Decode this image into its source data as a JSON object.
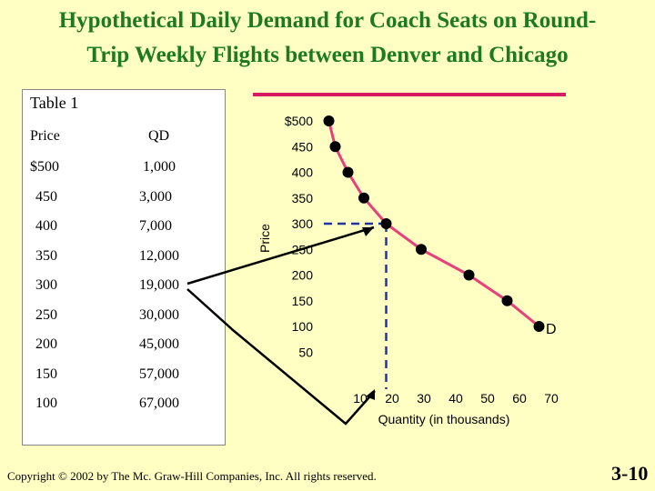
{
  "title_line1": "Hypothetical Daily Demand for Coach Seats on Round-",
  "title_line2": "Trip Weekly Flights between Denver and Chicago",
  "table": {
    "title": "Table 1",
    "col_price": "Price",
    "col_qd": "QD",
    "rows": [
      {
        "price": "$500",
        "qd": "1,000"
      },
      {
        "price": "450",
        "qd": "3,000"
      },
      {
        "price": "400",
        "qd": "7,000"
      },
      {
        "price": "350",
        "qd": "12,000"
      },
      {
        "price": "300",
        "qd": "19,000"
      },
      {
        "price": "250",
        "qd": "30,000"
      },
      {
        "price": "200",
        "qd": "45,000"
      },
      {
        "price": "150",
        "qd": "57,000"
      },
      {
        "price": "100",
        "qd": "67,000"
      }
    ]
  },
  "chart_data": {
    "type": "line",
    "title": "",
    "xlabel": "Quantity (in thousands)",
    "ylabel": "Price",
    "xlim": [
      0,
      70
    ],
    "ylim": [
      50,
      500
    ],
    "x_ticks": [
      "10",
      "20",
      "30",
      "40",
      "50",
      "60",
      "70"
    ],
    "y_ticks": [
      "$500",
      "450",
      "400",
      "350",
      "300",
      "250",
      "200",
      "150",
      "100",
      "50"
    ],
    "series": [
      {
        "name": "D",
        "x": [
          1,
          3,
          7,
          12,
          19,
          30,
          45,
          57,
          67
        ],
        "y": [
          500,
          450,
          400,
          350,
          300,
          250,
          200,
          150,
          100
        ]
      }
    ],
    "highlight": {
      "x": 19,
      "y": 300
    },
    "colors": {
      "curve": "#e8407a",
      "points": "#000000",
      "guide": "#2233aa",
      "banner": "#d81b60"
    }
  },
  "copyright": "Copyright © 2002 by The Mc. Graw-Hill Companies, Inc. All rights reserved.",
  "slide_number": "3-10"
}
